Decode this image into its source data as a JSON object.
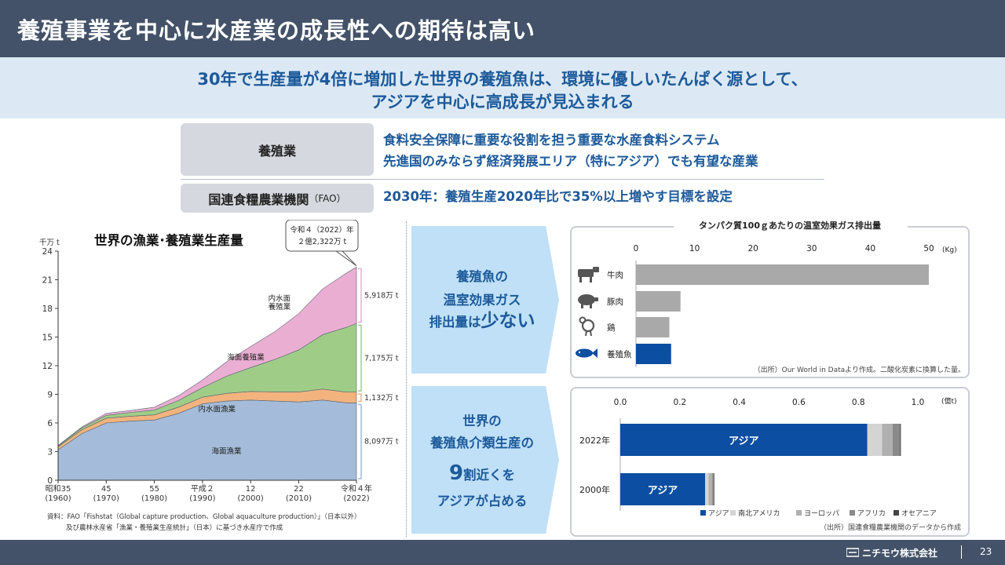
{
  "header": {
    "title": "養殖事業を中心に水産業の成長性への期待は高い"
  },
  "subtitle": {
    "line1": "30年で生産量が4倍に増加した世界の養殖魚は、環境に優しいたんぱく源として、",
    "line2": "アジアを中心に高成長が見込まれる"
  },
  "aquaculture_row": {
    "label": "養殖業",
    "line1": "食料安全保障に重要な役割を担う重要な水産食料システム",
    "line2": "先進国のみならず経済発展エリア（特にアジア）でも有望な産業"
  },
  "fao_row": {
    "label_main": "国連食糧農業機関",
    "label_suffix": "（FAO）",
    "text": "2030年：養殖生産2020年比で35%以上増やす目標を設定"
  },
  "panel_greenhouse": {
    "line1": "養殖魚の",
    "line2": "温室効果ガス",
    "line3_prefix": "排出量は",
    "line3_emph": "少ない"
  },
  "panel_asia": {
    "line1": "世界の",
    "line2": "養殖魚介類生産の",
    "line3_num": "9",
    "line3_rest": "割近くを",
    "line4": "アジアが占める"
  },
  "footer": {
    "company": "ニチモウ株式会社",
    "page": "23"
  },
  "colors": {
    "header_bg": "#435268",
    "accent_blue": "#1d5a9a",
    "bar_gray": "#a9a9a9",
    "bar_blue": "#0b4ea2",
    "panel_blue": "#bfe0f7"
  },
  "chart_data": [
    {
      "type": "area",
      "title": "世界の漁業･養殖業生産量",
      "ylabel": "千万 t",
      "ylim": [
        0,
        24
      ],
      "yticks": [
        "0",
        "3",
        "6",
        "9",
        "12",
        "15",
        "18",
        "21",
        "24"
      ],
      "xtick_labels": [
        {
          "year": 1960,
          "era": "昭和35",
          "western": "(1960)"
        },
        {
          "year": 1970,
          "era": "45",
          "western": "(1970)"
        },
        {
          "year": 1980,
          "era": "55",
          "western": "(1980)"
        },
        {
          "year": 1990,
          "era": "平成２",
          "western": "(1990)"
        },
        {
          "year": 2000,
          "era": "12",
          "western": "(2000)"
        },
        {
          "year": 2010,
          "era": "22",
          "western": "(2010)"
        },
        {
          "year": 2022,
          "era": "令和４年",
          "western": "(2022)"
        }
      ],
      "x": [
        1960,
        1965,
        1970,
        1975,
        1980,
        1985,
        1990,
        1995,
        2000,
        2005,
        2010,
        2015,
        2020,
        2022
      ],
      "series": [
        {
          "name": "海面漁業",
          "color": "#a4bcd9",
          "values": [
            3.2,
            4.9,
            6.0,
            6.2,
            6.3,
            7.0,
            8.0,
            8.3,
            8.4,
            8.3,
            8.2,
            8.4,
            8.1,
            8.1
          ]
        },
        {
          "name": "内水面漁業",
          "color": "#f3b37e",
          "values": [
            0.3,
            0.4,
            0.5,
            0.5,
            0.55,
            0.65,
            0.7,
            0.8,
            0.9,
            0.95,
            1.05,
            1.15,
            1.13,
            1.13
          ]
        },
        {
          "name": "海面養殖業",
          "color": "#9fcd88",
          "values": [
            0.1,
            0.2,
            0.3,
            0.4,
            0.5,
            0.7,
            1.0,
            1.8,
            2.5,
            3.4,
            4.4,
            5.7,
            6.8,
            7.2
          ]
        },
        {
          "name": "内水面養殖業",
          "color": "#ebaed3",
          "values": [
            0.05,
            0.1,
            0.2,
            0.2,
            0.3,
            0.5,
            0.8,
            1.5,
            2.2,
            2.9,
            3.8,
            4.8,
            5.7,
            5.9
          ]
        }
      ],
      "callout": {
        "line1": "令和４（2022）年",
        "line2": "２億2,322万 t"
      },
      "right_labels": [
        "5,918万 t",
        "7,175万 t",
        "1,132万 t",
        "8,097万 t"
      ],
      "source_line1": "資料：FAO「Fishstat（Global capture production、Global aquaculture production）」（日本以外）",
      "source_line2": "及び農林水産省「漁業・養殖業生産統計」（日本）に基づき水産庁で作成"
    },
    {
      "type": "bar",
      "title": "タンパク質100ｇあたりの温室効果ガス排出量",
      "categories": [
        "牛肉",
        "豚肉",
        "鶏",
        "養殖魚"
      ],
      "values": [
        50,
        7.6,
        5.7,
        6.0
      ],
      "xlim": [
        0,
        50
      ],
      "xticks": [
        "0",
        "10",
        "20",
        "30",
        "40",
        "50"
      ],
      "unit": "(Kg)",
      "source": "（出所）Our World in Dataより作成。二酸化炭素に換算した量。"
    },
    {
      "type": "bar",
      "stacked": true,
      "categories": [
        "2022年",
        "2000年"
      ],
      "xlim": [
        0,
        1.0
      ],
      "xticks": [
        "0.0",
        "0.2",
        "0.4",
        "0.6",
        "0.8",
        "1.0"
      ],
      "unit": "(億t)",
      "series": [
        {
          "name": "アジア",
          "color": "#0b4ea2",
          "values": [
            0.83,
            0.285
          ]
        },
        {
          "name": "南北アメリカ",
          "color": "#d4d4d4",
          "values": [
            0.05,
            0.012
          ]
        },
        {
          "name": "ヨーロッパ",
          "color": "#b0b0b0",
          "values": [
            0.035,
            0.012
          ]
        },
        {
          "name": "アフリカ",
          "color": "#8a8a8a",
          "values": [
            0.025,
            0.005
          ]
        },
        {
          "name": "オセアニア",
          "color": "#454545",
          "values": [
            0.003,
            0.002
          ]
        }
      ],
      "bar_label": "アジア",
      "source": "（出所）国連食糧農業機関のデータから作成"
    }
  ]
}
